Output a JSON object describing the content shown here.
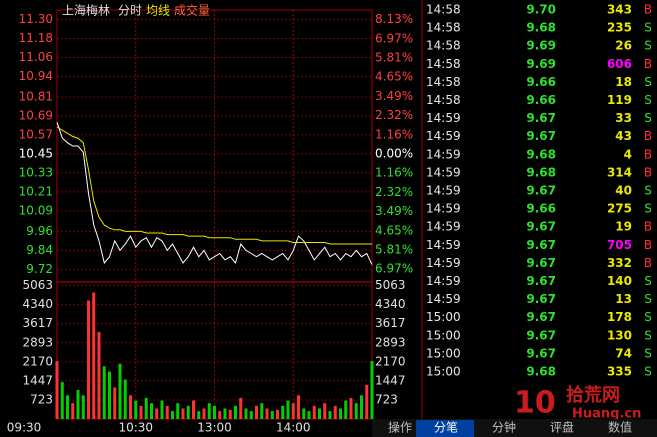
{
  "chart_data": [
    {
      "type": "line",
      "title": "上海梅林",
      "categories": [
        "09:30",
        null,
        null,
        null,
        null,
        null,
        null,
        null,
        null,
        null,
        null,
        null,
        null,
        null,
        null,
        "10:30",
        null,
        null,
        null,
        null,
        null,
        null,
        null,
        null,
        null,
        null,
        null,
        null,
        null,
        null,
        "13:00",
        null,
        null,
        null,
        null,
        null,
        null,
        null,
        null,
        null,
        null,
        null,
        null,
        null,
        null,
        "14:00",
        null,
        null,
        null,
        null,
        null,
        null,
        null,
        null,
        null,
        null,
        null,
        null,
        null,
        null,
        null
      ],
      "series": [
        {
          "name": "分时",
          "color": "#ffffff",
          "values": [
            10.65,
            10.55,
            10.52,
            10.5,
            10.5,
            10.46,
            10.2,
            10.0,
            9.9,
            9.76,
            9.8,
            9.9,
            9.84,
            9.88,
            9.93,
            9.86,
            9.9,
            9.92,
            9.86,
            9.92,
            9.9,
            9.84,
            9.88,
            9.82,
            9.76,
            9.8,
            9.86,
            9.8,
            9.84,
            9.78,
            9.8,
            9.82,
            9.78,
            9.8,
            9.76,
            9.88,
            9.84,
            9.82,
            9.8,
            9.82,
            9.8,
            9.78,
            9.8,
            9.82,
            9.78,
            9.84,
            9.93,
            9.9,
            9.84,
            9.78,
            9.82,
            9.86,
            9.8,
            9.82,
            9.78,
            9.82,
            9.8,
            9.84,
            9.8,
            9.82,
            9.75
          ]
        },
        {
          "name": "均线",
          "color": "#e8e800",
          "values": [
            10.62,
            10.6,
            10.58,
            10.56,
            10.55,
            10.52,
            10.35,
            10.15,
            10.05,
            10.0,
            9.98,
            9.97,
            9.97,
            9.96,
            9.96,
            9.96,
            9.96,
            9.95,
            9.95,
            9.95,
            9.95,
            9.94,
            9.94,
            9.94,
            9.94,
            9.93,
            9.93,
            9.93,
            9.93,
            9.92,
            9.92,
            9.92,
            9.92,
            9.92,
            9.91,
            9.91,
            9.91,
            9.91,
            9.91,
            9.9,
            9.9,
            9.9,
            9.9,
            9.9,
            9.9,
            9.89,
            9.89,
            9.89,
            9.89,
            9.89,
            9.89,
            9.89,
            9.88,
            9.88,
            9.88,
            9.88,
            9.88,
            9.88,
            9.88,
            9.88,
            9.88
          ]
        }
      ],
      "ylim": [
        9.64,
        11.36
      ],
      "yticks": [
        {
          "value": 11.3,
          "label": "11.30"
        },
        {
          "value": 11.18,
          "label": "11.18"
        },
        {
          "value": 11.06,
          "label": "11.06"
        },
        {
          "value": 10.94,
          "label": "10.94"
        },
        {
          "value": 10.81,
          "label": "10.81"
        },
        {
          "value": 10.69,
          "label": "10.69"
        },
        {
          "value": 10.57,
          "label": "10.57"
        },
        {
          "value": 10.45,
          "label": "10.45"
        },
        {
          "value": 10.33,
          "label": "10.33"
        },
        {
          "value": 10.21,
          "label": "10.21"
        },
        {
          "value": 10.09,
          "label": "10.09"
        },
        {
          "value": 9.96,
          "label": "9.96"
        },
        {
          "value": 9.84,
          "label": "9.84"
        },
        {
          "value": 9.72,
          "label": "9.72"
        }
      ],
      "y2lim": [
        -7.75,
        8.71
      ],
      "y2ticks": [
        {
          "value": 8.13,
          "label": "8.13%"
        },
        {
          "value": 6.97,
          "label": "6.97%"
        },
        {
          "value": 5.81,
          "label": "5.81%"
        },
        {
          "value": 4.65,
          "label": "4.65%"
        },
        {
          "value": 3.49,
          "label": "3.49%"
        },
        {
          "value": 2.32,
          "label": "2.32%"
        },
        {
          "value": 1.16,
          "label": "1.16%"
        },
        {
          "value": 0,
          "label": "0.00%"
        },
        {
          "value": -1.16,
          "label": "1.16%"
        },
        {
          "value": -2.32,
          "label": "2.32%"
        },
        {
          "value": -3.49,
          "label": "3.49%"
        },
        {
          "value": -4.65,
          "label": "4.65%"
        },
        {
          "value": -5.81,
          "label": "5.81%"
        },
        {
          "value": -6.97,
          "label": "6.97%"
        }
      ],
      "grid": true
    },
    {
      "type": "bar",
      "name": "成交量",
      "values": [
        2200,
        1400,
        900,
        600,
        1100,
        900,
        4500,
        4800,
        3300,
        2000,
        1800,
        1200,
        2100,
        1500,
        900,
        700,
        500,
        800,
        600,
        400,
        700,
        500,
        300,
        600,
        400,
        500,
        700,
        300,
        400,
        600,
        500,
        300,
        400,
        350,
        500,
        800,
        400,
        300,
        500,
        600,
        400,
        300,
        350,
        500,
        700,
        600,
        900,
        400,
        300,
        500,
        400,
        600,
        300,
        500,
        400,
        700,
        800,
        600,
        900,
        1300,
        2200
      ],
      "colors": [
        "#ff3232",
        "#00d000",
        "#00d000",
        "#ff3232",
        "#00d000",
        "#00d000",
        "#ff3232",
        "#ff3232",
        "#ff3232",
        "#00d000",
        "#00d000",
        "#ff3232",
        "#00d000",
        "#00d000",
        "#ff3232",
        "#00d000",
        "#ff3232",
        "#00d000",
        "#00d000",
        "#ff3232",
        "#00d000",
        "#ff3232",
        "#00d000",
        "#00d000",
        "#ff3232",
        "#00d000",
        "#ff3232",
        "#00d000",
        "#ff3232",
        "#00d000",
        "#00d000",
        "#ff3232",
        "#00d000",
        "#ff3232",
        "#00d000",
        "#ff3232",
        "#00d000",
        "#00d000",
        "#ff3232",
        "#00d000",
        "#ff3232",
        "#00d000",
        "#ff3232",
        "#00d000",
        "#00d000",
        "#ff3232",
        "#ff3232",
        "#00d000",
        "#00d000",
        "#ff3232",
        "#00d000",
        "#ff3232",
        "#00d000",
        "#ff3232",
        "#00d000",
        "#00d000",
        "#ff3232",
        "#00d000",
        "#00d000",
        "#ff3232",
        "#00d000"
      ],
      "ylim": [
        0,
        5200
      ],
      "yticks": [
        5063,
        4340,
        3617,
        2893,
        2170,
        1447,
        723
      ],
      "grid": true
    }
  ],
  "trades": {
    "rows": [
      [
        "14:58",
        "9.70",
        "343",
        "B"
      ],
      [
        "14:58",
        "9.68",
        "235",
        "S"
      ],
      [
        "14:58",
        "9.69",
        "26",
        "S"
      ],
      [
        "14:58",
        "9.69",
        "606",
        "B"
      ],
      [
        "14:58",
        "9.66",
        "18",
        "S"
      ],
      [
        "14:58",
        "9.66",
        "119",
        "S"
      ],
      [
        "14:59",
        "9.67",
        "33",
        "S"
      ],
      [
        "14:59",
        "9.67",
        "43",
        "B"
      ],
      [
        "14:59",
        "9.68",
        "4",
        "B"
      ],
      [
        "14:59",
        "9.68",
        "314",
        "B"
      ],
      [
        "14:59",
        "9.67",
        "40",
        "S"
      ],
      [
        "14:59",
        "9.66",
        "275",
        "S"
      ],
      [
        "14:59",
        "9.67",
        "19",
        "B"
      ],
      [
        "14:59",
        "9.67",
        "705",
        "B"
      ],
      [
        "14:59",
        "9.67",
        "332",
        "B"
      ],
      [
        "14:59",
        "9.67",
        "140",
        "S"
      ],
      [
        "14:59",
        "9.67",
        "13",
        "S"
      ],
      [
        "15:00",
        "9.67",
        "178",
        "S"
      ],
      [
        "15:00",
        "9.67",
        "130",
        "S"
      ],
      [
        "15:00",
        "9.67",
        "74",
        "S"
      ],
      [
        "15:00",
        "9.68",
        "335",
        "S"
      ]
    ],
    "highlight_rows": [
      3,
      13
    ]
  },
  "tabs": {
    "items": [
      "操作",
      "分笔",
      "分钟",
      "评盘",
      "数值"
    ],
    "active": 1
  },
  "watermark": {
    "number": "10",
    "name": "拾荒网",
    "domain": "Huang.cn"
  }
}
